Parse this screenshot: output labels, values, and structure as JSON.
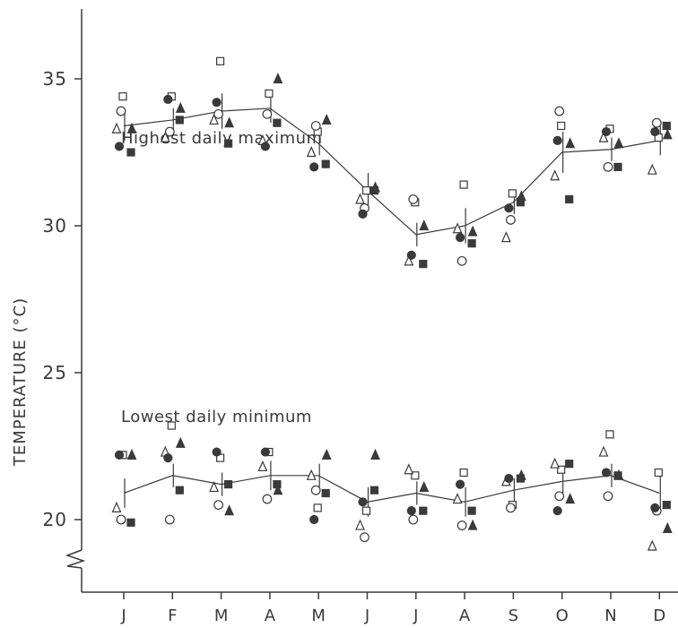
{
  "chart_data": {
    "type": "scatter",
    "ylabel": "TEMPERATURE (°C)",
    "y_ticks": [
      20,
      25,
      30,
      35
    ],
    "ylim": [
      17.5,
      42
    ],
    "grid": false,
    "categories": [
      "J",
      "F",
      "M",
      "A",
      "M",
      "J",
      "J",
      "A",
      "S",
      "O",
      "N",
      "D"
    ],
    "series_labels": {
      "max": "Highest daily maximum",
      "min": "Lowest daily minimum"
    },
    "series": [
      {
        "mean": [
          33.4,
          33.6,
          33.9,
          34.0,
          32.8,
          31.2,
          29.7,
          30.0,
          30.8,
          32.5,
          32.6,
          32.9
        ],
        "error": [
          0.5,
          0.4,
          0.6,
          0.5,
          0.4,
          0.6,
          0.4,
          0.6,
          0.4,
          0.7,
          0.4,
          0.5
        ],
        "points": {
          "open_square": [
            34.4,
            34.4,
            35.6,
            34.5,
            33.2,
            31.2,
            30.8,
            31.4,
            31.1,
            33.4,
            33.3,
            33.0
          ],
          "open_circle": [
            33.9,
            33.2,
            33.8,
            33.8,
            33.4,
            30.6,
            30.9,
            28.8,
            30.2,
            33.9,
            32.0,
            33.5
          ],
          "open_triangle": [
            33.3,
            33.0,
            33.6,
            32.9,
            32.5,
            30.9,
            28.8,
            29.9,
            29.6,
            31.7,
            33.0,
            31.9
          ],
          "filled_circle": [
            32.7,
            34.3,
            34.2,
            32.7,
            32.0,
            30.4,
            29.0,
            29.6,
            30.6,
            32.9,
            33.2,
            33.2
          ],
          "filled_square": [
            32.5,
            33.6,
            32.8,
            33.5,
            32.1,
            31.2,
            28.7,
            29.4,
            30.8,
            30.9,
            32.0,
            33.4
          ],
          "filled_triangle": [
            33.3,
            34.0,
            33.5,
            35.0,
            33.6,
            31.3,
            30.0,
            29.8,
            31.0,
            32.8,
            32.8,
            33.1
          ]
        }
      },
      {
        "mean": [
          20.9,
          21.5,
          21.2,
          21.5,
          21.5,
          20.6,
          20.9,
          20.6,
          21.0,
          21.3,
          21.5,
          20.9
        ],
        "error": [
          0.5,
          0.4,
          0.4,
          0.5,
          0.4,
          0.5,
          0.4,
          0.5,
          0.4,
          0.5,
          0.4,
          0.6
        ],
        "points": {
          "open_square": [
            22.2,
            23.2,
            22.1,
            22.3,
            20.4,
            20.3,
            21.5,
            21.6,
            20.5,
            21.7,
            22.9,
            21.6
          ],
          "open_circle": [
            20.0,
            20.0,
            20.5,
            20.7,
            21.0,
            19.4,
            20.0,
            19.8,
            20.4,
            20.8,
            20.8,
            20.3
          ],
          "open_triangle": [
            20.4,
            22.3,
            21.1,
            21.8,
            21.5,
            19.8,
            21.7,
            20.7,
            21.3,
            21.9,
            22.3,
            19.1
          ],
          "filled_circle": [
            22.2,
            22.1,
            22.3,
            22.3,
            20.0,
            20.6,
            20.3,
            21.2,
            21.4,
            20.3,
            21.6,
            20.4
          ],
          "filled_square": [
            19.9,
            21.0,
            21.2,
            21.2,
            20.9,
            21.0,
            20.3,
            20.3,
            21.4,
            21.9,
            21.5,
            20.5
          ],
          "filled_triangle": [
            22.2,
            22.6,
            20.3,
            21.0,
            22.2,
            22.2,
            21.1,
            19.8,
            21.5,
            20.7,
            21.5,
            19.7
          ]
        }
      }
    ]
  }
}
